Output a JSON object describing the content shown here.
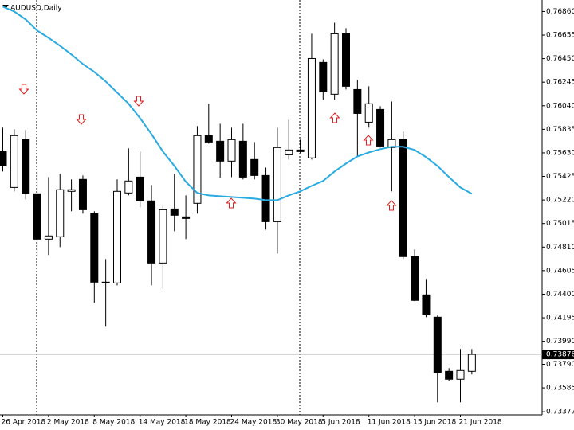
{
  "chart_data": {
    "type": "candlestick",
    "title": "AUDUSD,Daily",
    "categories": [
      "26 Apr 2018",
      null,
      null,
      null,
      "2 May 2018",
      null,
      null,
      null,
      "8 May 2018",
      null,
      null,
      null,
      "14 May 2018",
      null,
      null,
      null,
      "18 May 2018",
      null,
      null,
      null,
      "24 May 2018",
      null,
      null,
      null,
      "30 May 2018",
      null,
      null,
      null,
      "5 Jun 2018",
      null,
      null,
      null,
      "11 Jun 2018",
      null,
      null,
      null,
      "15 Jun 2018",
      null,
      null,
      null,
      "21 Jun 2018",
      null
    ],
    "open": [
      0.75641,
      0.75329,
      0.75745,
      0.75274,
      0.74879,
      0.749,
      0.75295,
      0.75399,
      0.75101,
      0.74505,
      0.74498,
      0.75281,
      0.75419,
      0.75212,
      0.74671,
      0.75142,
      0.75073,
      0.75191,
      0.7578,
      0.75731,
      0.75558,
      0.75731,
      0.75572,
      0.75433,
      0.75031,
      0.75613,
      0.75655,
      0.75586,
      0.76417,
      0.7614,
      0.76666,
      0.76181,
      0.75897,
      0.76008,
      0.75676,
      0.75745,
      0.74727,
      0.74394,
      0.742,
      0.73729,
      0.7366,
      0.73729
    ],
    "high": [
      0.75849,
      0.75835,
      0.75828,
      0.75468,
      0.75419,
      0.75447,
      0.75399,
      0.75433,
      0.75122,
      0.74706,
      0.75399,
      0.75669,
      0.75641,
      0.7535,
      0.7517,
      0.75447,
      0.7526,
      0.75863,
      0.76057,
      0.75883,
      0.75849,
      0.75883,
      0.75724,
      0.75502,
      0.75849,
      0.75918,
      0.75745,
      0.76666,
      0.76444,
      0.76763,
      0.76715,
      0.76264,
      0.76209,
      0.76036,
      0.76077,
      0.75814,
      0.74789,
      0.74533,
      0.74214,
      0.73757,
      0.73923,
      0.73923
    ],
    "low": [
      0.75468,
      0.75295,
      0.75225,
      0.74727,
      0.74741,
      0.7481,
      0.75122,
      0.75101,
      0.74325,
      0.74117,
      0.74477,
      0.7526,
      0.75156,
      0.74477,
      0.7445,
      0.74948,
      0.74879,
      0.75101,
      0.7571,
      0.75412,
      0.75419,
      0.75399,
      0.75399,
      0.74962,
      0.74754,
      0.75572,
      0.75627,
      0.75572,
      0.76091,
      0.76091,
      0.76181,
      0.75593,
      0.75849,
      0.75676,
      0.75295,
      0.74706,
      0.74339,
      0.742,
      0.73459,
      0.73646,
      0.73459,
      0.73702
    ],
    "close": [
      0.75516,
      0.7578,
      0.75274,
      0.74879,
      0.74907,
      0.75309,
      0.75309,
      0.75135,
      0.74505,
      0.74498,
      0.75295,
      0.75385,
      0.75212,
      0.74671,
      0.75135,
      0.75087,
      0.75059,
      0.7578,
      0.75724,
      0.75558,
      0.75745,
      0.75419,
      0.75433,
      0.75031,
      0.75676,
      0.75655,
      0.75641,
      0.76451,
      0.7616,
      0.76666,
      0.76209,
      0.75973,
      0.76057,
      0.75689,
      0.75745,
      0.74727,
      0.74346,
      0.74221,
      0.73716,
      0.7366,
      0.73736,
      0.73876
    ],
    "up_color": "#ffffff",
    "down_color": "#000000",
    "ma": {
      "color": "#29abe2",
      "values": [
        0.76902,
        0.7686,
        0.76791,
        0.76694,
        0.76631,
        0.76562,
        0.76486,
        0.76403,
        0.76334,
        0.76251,
        0.76154,
        0.76057,
        0.75932,
        0.75793,
        0.75641,
        0.75516,
        0.75378,
        0.75281,
        0.7526,
        0.75253,
        0.75246,
        0.75239,
        0.75232,
        0.75218,
        0.75218,
        0.7526,
        0.75295,
        0.75343,
        0.75385,
        0.75468,
        0.75537,
        0.75599,
        0.75634,
        0.75662,
        0.75683,
        0.75683,
        0.75655,
        0.75593,
        0.75516,
        0.75419,
        0.75329,
        0.75274
      ]
    },
    "last_price": 0.73876,
    "ylim": [
      0.7335,
      0.7696
    ],
    "yticks": [
      {
        "value": 0.7686,
        "label": "0.76860"
      },
      0.76655,
      {
        "value": 0.7645,
        "label": "0.76450"
      },
      0.76245,
      {
        "value": 0.7604,
        "label": "0.76040"
      },
      0.75835,
      {
        "value": 0.7563,
        "label": "0.75630"
      },
      0.75425,
      {
        "value": 0.7522,
        "label": "0.75220"
      },
      0.75015,
      {
        "value": 0.7481,
        "label": "0.74810"
      },
      0.74605,
      {
        "value": 0.744,
        "label": "0.74400"
      },
      0.74195,
      {
        "value": 0.7399,
        "label": "0.73990"
      },
      {
        "value": 0.7379,
        "label": "0.73790"
      },
      0.73585,
      0.73377
    ]
  }
}
